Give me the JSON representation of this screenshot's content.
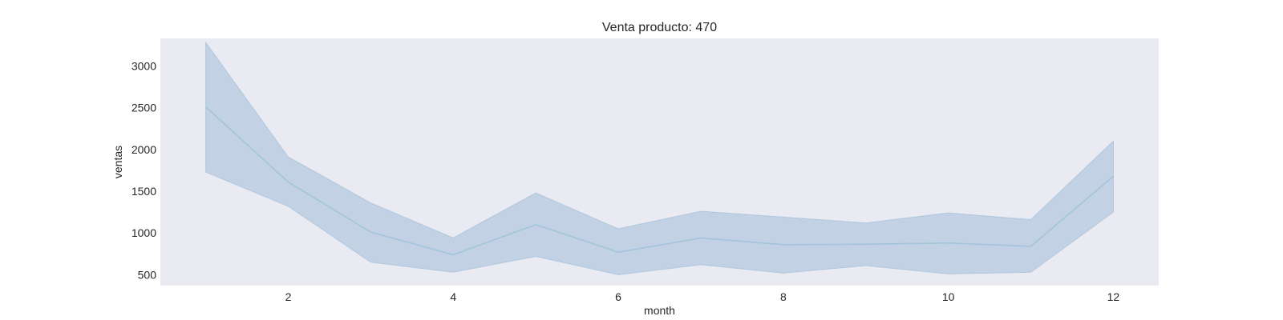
{
  "chart_data": {
    "type": "line",
    "title": "Venta producto: 470",
    "xlabel": "month",
    "ylabel": "ventas",
    "xlim": [
      0.45,
      12.55
    ],
    "ylim": [
      370,
      3330
    ],
    "xticks": [
      2,
      4,
      6,
      8,
      10,
      12
    ],
    "yticks": [
      500,
      1000,
      1500,
      2000,
      2500,
      3000
    ],
    "grid": false,
    "legend": "none",
    "colors": {
      "plot_background": "#eaeaf2",
      "line": "#a2c4dc",
      "band_fill": "#a7c2db",
      "band_edge": "#a7c2db"
    },
    "series": [
      {
        "x": [
          1,
          2,
          3,
          4,
          5,
          6,
          7,
          8,
          9,
          10,
          11,
          12
        ],
        "y": [
          2510,
          1610,
          1010,
          740,
          1100,
          770,
          940,
          860,
          865,
          880,
          840,
          1680
        ],
        "lower": [
          1730,
          1320,
          650,
          530,
          720,
          500,
          620,
          520,
          610,
          510,
          530,
          1250
        ],
        "upper": [
          3280,
          1910,
          1360,
          940,
          1480,
          1050,
          1260,
          1190,
          1120,
          1240,
          1160,
          2100
        ]
      }
    ]
  }
}
